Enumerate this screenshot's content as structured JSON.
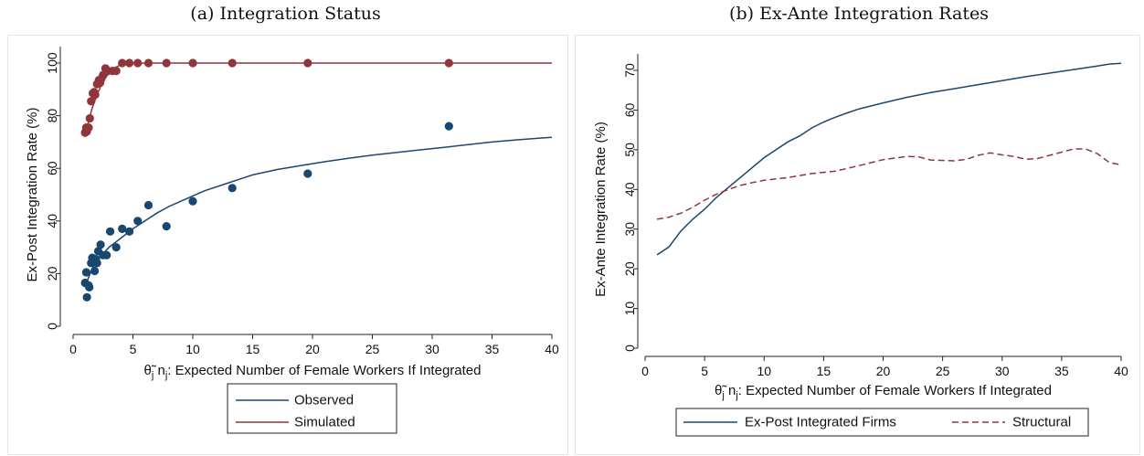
{
  "chart_data": [
    {
      "panel_title": "(a) Integration Status",
      "type": "scatter",
      "xlabel_parts": {
        "theta": "θ̃",
        "sub_j1": "j",
        "n": " n",
        "sub_j2": "j",
        "rest": ": Expected Number of Female Workers If Integrated"
      },
      "ylabel": "Ex-Post Integration Rate (%)",
      "xlim": [
        0,
        40
      ],
      "ylim": [
        0,
        100
      ],
      "xticks": [
        0,
        5,
        10,
        15,
        20,
        25,
        30,
        35,
        40
      ],
      "yticks": [
        0,
        20,
        40,
        60,
        80,
        100
      ],
      "grid": false,
      "legend": {
        "placement": "bottom"
      },
      "series": [
        {
          "name": "Observed",
          "color": "#1a476f",
          "points": [
            [
              1.0,
              16.5
            ],
            [
              1.1,
              20.5
            ],
            [
              1.15,
              11
            ],
            [
              1.3,
              15.5
            ],
            [
              1.35,
              14.8
            ],
            [
              1.5,
              24
            ],
            [
              1.6,
              26
            ],
            [
              1.8,
              21
            ],
            [
              1.9,
              25.5
            ],
            [
              2.0,
              24
            ],
            [
              2.1,
              28.5
            ],
            [
              2.3,
              31
            ],
            [
              2.5,
              27
            ],
            [
              2.8,
              27
            ],
            [
              3.1,
              36
            ],
            [
              3.6,
              30
            ],
            [
              4.1,
              37
            ],
            [
              4.7,
              36
            ],
            [
              5.4,
              40
            ],
            [
              6.3,
              46
            ],
            [
              7.8,
              38
            ],
            [
              10.0,
              47.5
            ],
            [
              13.3,
              52.5
            ],
            [
              19.6,
              58
            ],
            [
              31.4,
              76
            ]
          ],
          "fit": [
            [
              1.0,
              15
            ],
            [
              1.5,
              21
            ],
            [
              2.0,
              25
            ],
            [
              3.0,
              30
            ],
            [
              4.0,
              33.5
            ],
            [
              5.0,
              37
            ],
            [
              6.0,
              40
            ],
            [
              7.0,
              43
            ],
            [
              8.0,
              45.5
            ],
            [
              9.0,
              47.5
            ],
            [
              10.0,
              49.5
            ],
            [
              11.0,
              51.5
            ],
            [
              12.0,
              53
            ],
            [
              13.0,
              54.5
            ],
            [
              14.0,
              56
            ],
            [
              15.0,
              57.5
            ],
            [
              17.0,
              59.5
            ],
            [
              19.0,
              61
            ],
            [
              21.0,
              62.5
            ],
            [
              23.0,
              63.8
            ],
            [
              25.0,
              65
            ],
            [
              27.0,
              66
            ],
            [
              29.0,
              67
            ],
            [
              31.0,
              68
            ],
            [
              33.0,
              69
            ],
            [
              35.0,
              70
            ],
            [
              37.0,
              70.8
            ],
            [
              39.0,
              71.5
            ],
            [
              40.0,
              71.8
            ]
          ]
        },
        {
          "name": "Simulated",
          "color": "#90353b",
          "points": [
            [
              1.0,
              73.5
            ],
            [
              1.05,
              74
            ],
            [
              1.1,
              75.5
            ],
            [
              1.15,
              74
            ],
            [
              1.3,
              75.5
            ],
            [
              1.4,
              79
            ],
            [
              1.5,
              85.5
            ],
            [
              1.65,
              88.5
            ],
            [
              1.75,
              89
            ],
            [
              1.85,
              88
            ],
            [
              2.0,
              92
            ],
            [
              2.15,
              93.5
            ],
            [
              2.25,
              92.5
            ],
            [
              2.35,
              94
            ],
            [
              2.5,
              95.5
            ],
            [
              2.7,
              98
            ],
            [
              2.9,
              97
            ],
            [
              3.3,
              97
            ],
            [
              3.6,
              97
            ],
            [
              4.1,
              100
            ],
            [
              4.7,
              100
            ],
            [
              5.4,
              100
            ],
            [
              6.3,
              100
            ],
            [
              7.8,
              100
            ],
            [
              10.0,
              100
            ],
            [
              13.3,
              100
            ],
            [
              19.6,
              100
            ],
            [
              31.4,
              100
            ]
          ],
          "fit": [
            [
              1.0,
              72.5
            ],
            [
              1.3,
              78
            ],
            [
              1.6,
              83
            ],
            [
              2.0,
              88
            ],
            [
              2.4,
              92
            ],
            [
              2.8,
              95
            ],
            [
              3.2,
              97
            ],
            [
              3.6,
              98.5
            ],
            [
              4.0,
              99.3
            ],
            [
              4.5,
              99.8
            ],
            [
              5.0,
              100
            ],
            [
              40.0,
              100
            ]
          ]
        }
      ]
    },
    {
      "panel_title": "(b) Ex-Ante Integration Rates",
      "type": "line",
      "xlabel_parts": {
        "theta": "θ̃",
        "sub_j1": "j",
        "n": " n",
        "sub_j2": "j",
        "rest": ": Expected Number of Female Workers If Integrated"
      },
      "ylabel": "Ex-Ante Integration Rate (%)",
      "xlim": [
        0,
        40
      ],
      "ylim": [
        0,
        70
      ],
      "xticks": [
        0,
        5,
        10,
        15,
        20,
        25,
        30,
        35,
        40
      ],
      "yticks": [
        0,
        10,
        20,
        30,
        40,
        50,
        60,
        70
      ],
      "grid": false,
      "legend": {
        "placement": "bottom"
      },
      "series": [
        {
          "name": "Ex-Post Integrated Firms",
          "color": "#1a476f",
          "style": "solid",
          "points": [
            [
              1.0,
              23.5
            ],
            [
              2.0,
              25.5
            ],
            [
              3.0,
              29.5
            ],
            [
              4.0,
              32.5
            ],
            [
              5.0,
              35
            ],
            [
              6.0,
              38
            ],
            [
              7.0,
              40.5
            ],
            [
              8.0,
              43
            ],
            [
              9.0,
              45.5
            ],
            [
              10.0,
              48
            ],
            [
              11.0,
              50
            ],
            [
              12.0,
              52
            ],
            [
              13.0,
              53.5
            ],
            [
              14.0,
              55.5
            ],
            [
              15.0,
              57
            ],
            [
              16.0,
              58.2
            ],
            [
              17.0,
              59.3
            ],
            [
              18.0,
              60.3
            ],
            [
              20.0,
              61.8
            ],
            [
              22.0,
              63.2
            ],
            [
              24.0,
              64.4
            ],
            [
              26.0,
              65.4
            ],
            [
              28.0,
              66.4
            ],
            [
              30.0,
              67.4
            ],
            [
              32.0,
              68.4
            ],
            [
              34.0,
              69.3
            ],
            [
              36.0,
              70.2
            ],
            [
              38.0,
              71.1
            ],
            [
              39.0,
              71.6
            ],
            [
              40.0,
              71.8
            ]
          ]
        },
        {
          "name": "Structural",
          "color": "#90353b",
          "style": "dashed",
          "points": [
            [
              1.0,
              32.5
            ],
            [
              2.0,
              33
            ],
            [
              3.0,
              34
            ],
            [
              4.0,
              35.5
            ],
            [
              5.0,
              37.3
            ],
            [
              6.0,
              38.8
            ],
            [
              7.0,
              40
            ],
            [
              8.0,
              41
            ],
            [
              9.0,
              41.7
            ],
            [
              10.0,
              42.3
            ],
            [
              12.0,
              43
            ],
            [
              14.0,
              44
            ],
            [
              16.0,
              44.6
            ],
            [
              18.0,
              46
            ],
            [
              20.0,
              47.5
            ],
            [
              22.0,
              48.3
            ],
            [
              23.0,
              48.2
            ],
            [
              24.0,
              47.4
            ],
            [
              26.0,
              47.2
            ],
            [
              27.0,
              47.6
            ],
            [
              28.0,
              48.6
            ],
            [
              29.0,
              49.2
            ],
            [
              30.0,
              48.7
            ],
            [
              31.0,
              48.3
            ],
            [
              32.0,
              47.6
            ],
            [
              33.0,
              47.8
            ],
            [
              34.0,
              48.6
            ],
            [
              35.0,
              49.4
            ],
            [
              36.0,
              50.2
            ],
            [
              37.0,
              50.2
            ],
            [
              38.0,
              49
            ],
            [
              39.0,
              46.8
            ],
            [
              40.0,
              46.2
            ]
          ]
        }
      ]
    }
  ]
}
